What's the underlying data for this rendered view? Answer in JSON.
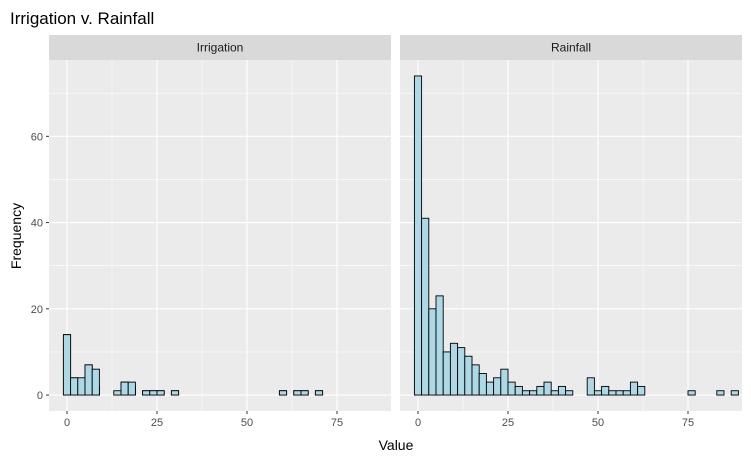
{
  "chart_data": {
    "type": "bar",
    "title": "Irrigation v. Rainfall",
    "xlabel": "Value",
    "ylabel": "Frequency",
    "xlim": [
      -5,
      90
    ],
    "ylim": [
      -3.7,
      77.7
    ],
    "x_ticks": [
      0,
      25,
      50,
      75
    ],
    "y_ticks": [
      0,
      20,
      40,
      60
    ],
    "bin_width": 2,
    "grid": true,
    "colors": {
      "fill": "#ADD8E6",
      "outline": "#000000",
      "panel": "#EBEBEB",
      "strip": "#D9D9D9",
      "grid": "#FFFFFF"
    },
    "panels": [
      {
        "name": "Irrigation",
        "bin_start": -1,
        "counts": [
          14,
          4,
          3,
          7,
          2,
          0,
          0,
          1,
          3,
          2,
          0,
          1,
          1,
          1,
          0,
          1,
          0,
          0,
          0,
          0,
          0,
          0,
          0,
          0,
          0,
          0,
          0,
          0,
          0,
          0,
          1,
          0,
          1,
          1,
          0,
          1,
          0,
          0,
          0,
          0,
          0,
          0,
          0,
          0
        ],
        "overlay_counts": [
          14,
          4,
          4,
          7,
          6,
          0,
          0,
          0,
          3,
          3,
          0,
          1,
          1,
          1,
          0,
          1,
          0,
          0,
          0,
          0,
          0,
          0,
          0,
          0,
          0,
          0,
          0,
          0,
          0,
          0,
          1,
          0,
          1,
          1,
          0,
          1,
          0,
          0,
          0,
          0,
          0,
          0,
          0,
          0
        ]
      },
      {
        "name": "Rainfall",
        "bin_start": -1,
        "counts": [
          74,
          41,
          20,
          23,
          10,
          12,
          11,
          9,
          7,
          5,
          3,
          4,
          6,
          3,
          2,
          1,
          1,
          2,
          3,
          1,
          2,
          1,
          0,
          0,
          4,
          1,
          2,
          1,
          1,
          1,
          3,
          2,
          0,
          0,
          0,
          0,
          0,
          0,
          1,
          0,
          0,
          0,
          1,
          0,
          1
        ]
      }
    ]
  }
}
